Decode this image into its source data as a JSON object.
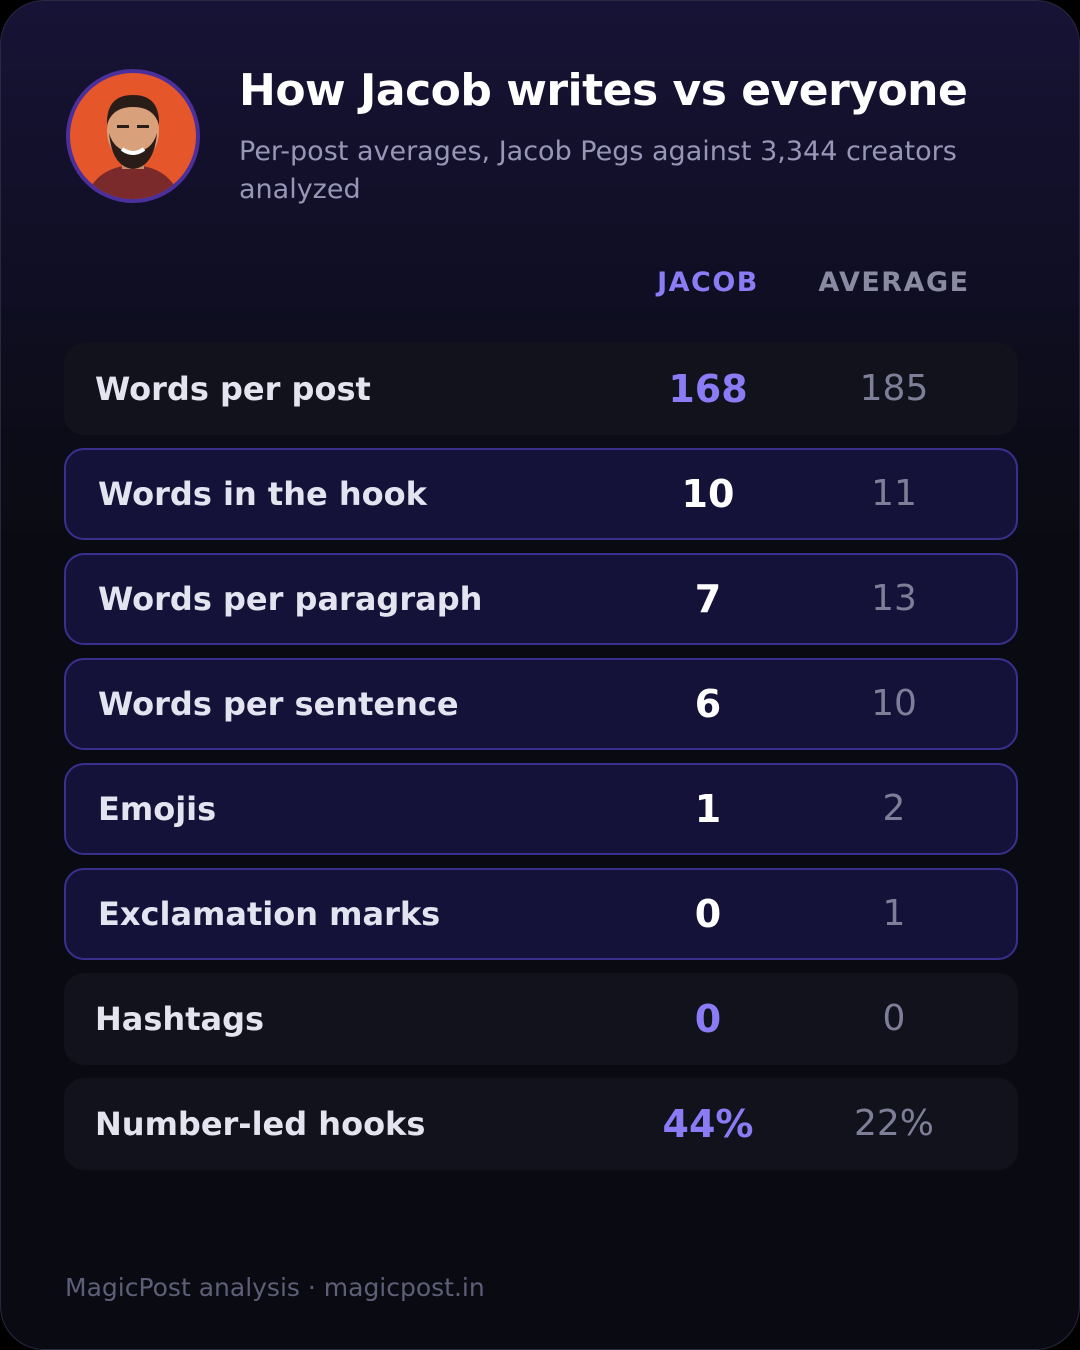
{
  "header": {
    "title": "How Jacob writes vs everyone",
    "subtitle": "Per-post averages, Jacob Pegs against 3,344 creators analyzed"
  },
  "table": {
    "columns": [
      "JACOB",
      "AVERAGE"
    ],
    "rows": [
      {
        "label": "Words per post",
        "jacob": "168",
        "average": "185",
        "highlighted": false
      },
      {
        "label": "Words in the hook",
        "jacob": "10",
        "average": "11",
        "highlighted": true
      },
      {
        "label": "Words per paragraph",
        "jacob": "7",
        "average": "13",
        "highlighted": true
      },
      {
        "label": "Words per sentence",
        "jacob": "6",
        "average": "10",
        "highlighted": true
      },
      {
        "label": "Emojis",
        "jacob": "1",
        "average": "2",
        "highlighted": true
      },
      {
        "label": "Exclamation marks",
        "jacob": "0",
        "average": "1",
        "highlighted": true
      },
      {
        "label": "Hashtags",
        "jacob": "0",
        "average": "0",
        "highlighted": false
      },
      {
        "label": "Number-led hooks",
        "jacob": "44%",
        "average": "22%",
        "highlighted": false
      }
    ]
  },
  "footer": "MagicPost analysis · magicpost.in"
}
